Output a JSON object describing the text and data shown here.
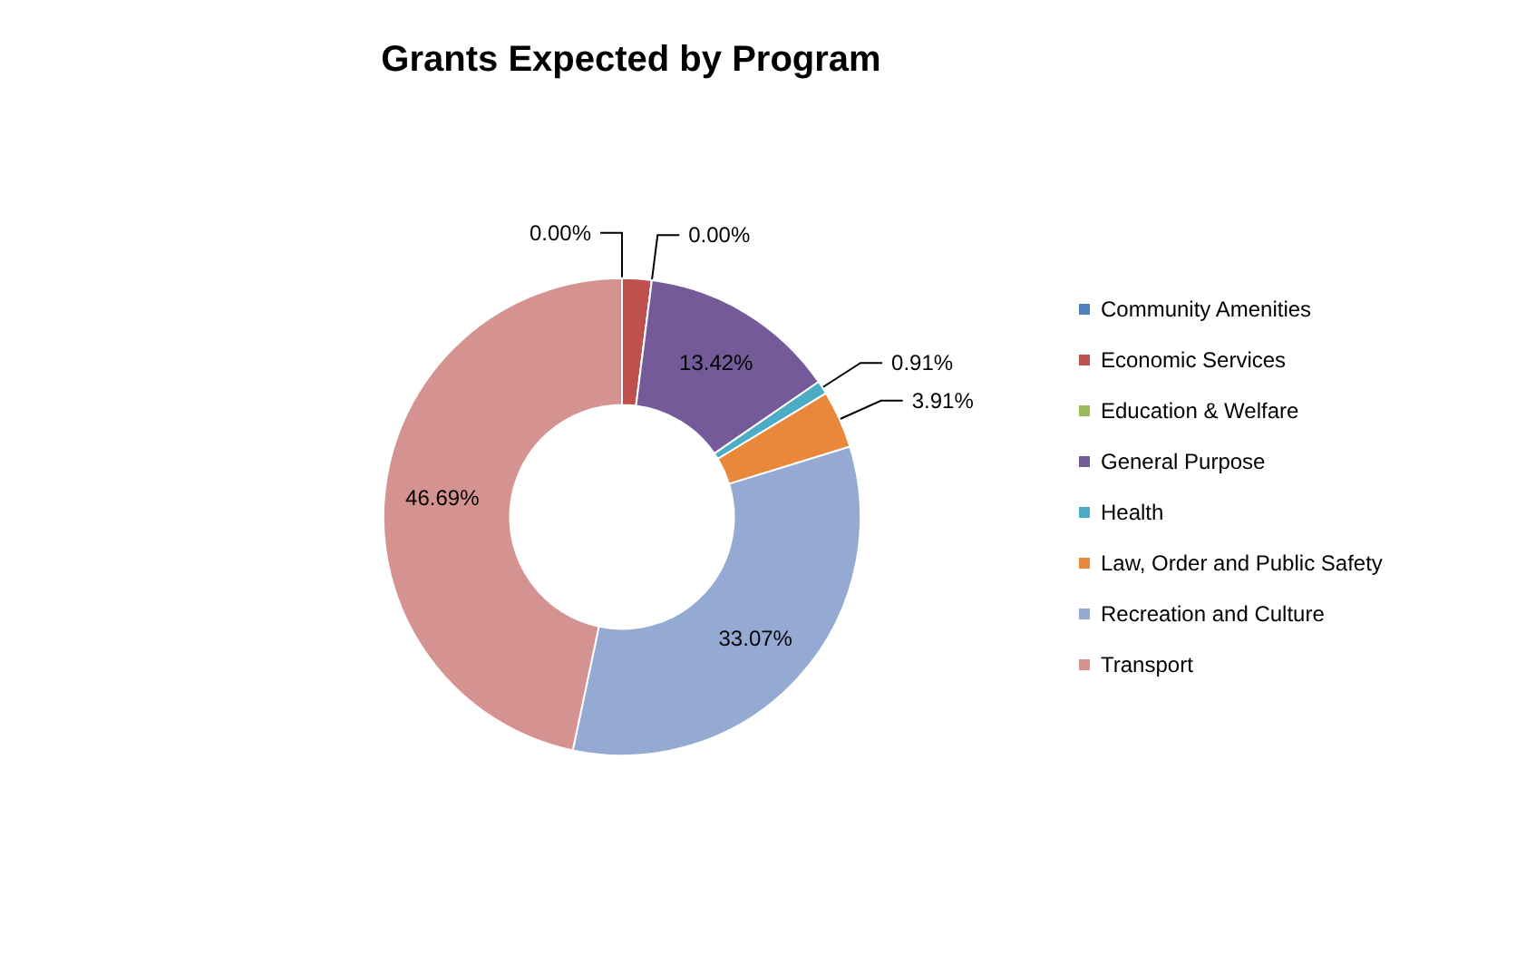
{
  "chart_data": {
    "type": "donut",
    "title": "Grants Expected by Program",
    "categories": [
      "Community Amenities",
      "Economic Services",
      "Education & Welfare",
      "General Purpose",
      "Health",
      "Law, Order and Public Safety",
      "Recreation and Culture",
      "Transport"
    ],
    "values": [
      0,
      2.0,
      0,
      13.42,
      0.91,
      3.91,
      33.07,
      46.69
    ],
    "value_labels": [
      "0.00%",
      null,
      "0.00%",
      "13.42%",
      "0.91%",
      "3.91%",
      "33.07%",
      "46.69%"
    ],
    "colors": [
      "#4f81bd",
      "#c0504d",
      "#9bbb59",
      "#745a98",
      "#4bacc6",
      "#e9873a",
      "#95aad3",
      "#d49390"
    ],
    "legend": "right"
  }
}
